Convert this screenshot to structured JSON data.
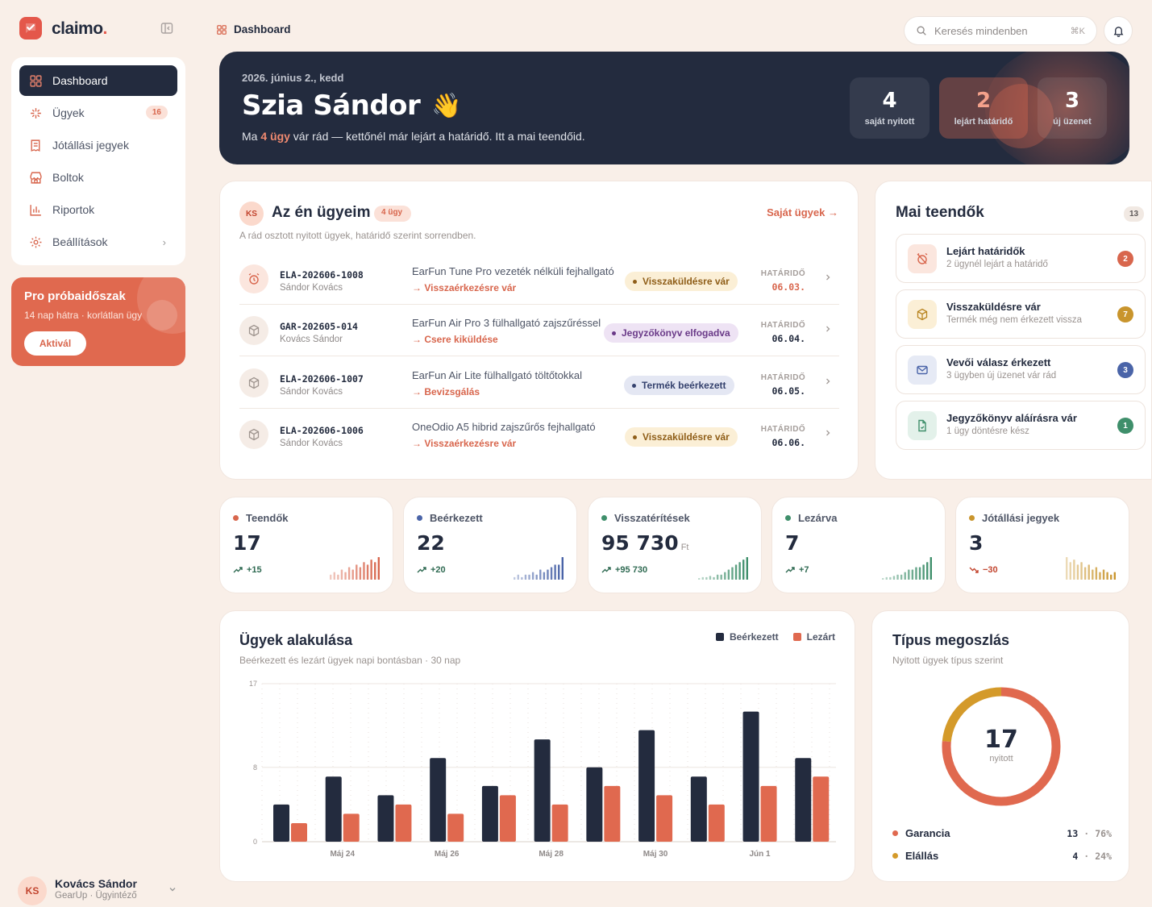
{
  "brand": {
    "name": "claimo",
    "dot": "."
  },
  "sidebar": {
    "items": [
      {
        "label": "Dashboard"
      },
      {
        "label": "Ügyek",
        "badge": "16"
      },
      {
        "label": "Jótállási jegyek"
      },
      {
        "label": "Boltok"
      },
      {
        "label": "Riportok"
      },
      {
        "label": "Beállítások"
      }
    ],
    "pro": {
      "title": "Pro próbaidőszak",
      "subtitle": "14 nap hátra · korlátlan ügy",
      "button": "Aktivál"
    },
    "user": {
      "initials": "KS",
      "name": "Kovács Sándor",
      "role": "GearUp · Ügyintéző"
    }
  },
  "topbar": {
    "breadcrumb": "Dashboard",
    "search_placeholder": "Keresés mindenben",
    "shortcut": "⌘K"
  },
  "hero": {
    "date": "2026. június 2., kedd",
    "greeting": "Szia Sándor",
    "emoji": "👋",
    "subtitle_pre": "Ma ",
    "subtitle_bold": "4 ügy",
    "subtitle_post": " vár rád — kettőnél már lejárt a határidő. Itt a mai teendőid.",
    "stats": [
      {
        "value": "4",
        "label": "saját nyitott"
      },
      {
        "value": "2",
        "label": "lejárt határidő"
      },
      {
        "value": "3",
        "label": "új üzenet"
      }
    ]
  },
  "my_cases": {
    "initials": "KS",
    "title": "Az én ügyeim",
    "count": "4 ügy",
    "subtitle": "A rád osztott nyitott ügyek, határidő szerint sorrendben.",
    "link": "Saját ügyek",
    "deadline_label": "HATÁRIDŐ",
    "rows": [
      {
        "id": "ELA-202606-1008",
        "person": "Sándor Kovács",
        "product": "EarFun Tune Pro vezeték nélküli fejhallgató",
        "step": "Visszaérkezésre vár",
        "status": "Visszaküldésre vár",
        "deadline": "06.03."
      },
      {
        "id": "GAR-202605-014",
        "person": "Kovács Sándor",
        "product": "EarFun Air Pro 3 fülhallgató zajszűréssel",
        "step": "Csere kiküldése",
        "status": "Jegyzőkönyv elfogadva",
        "deadline": "06.04."
      },
      {
        "id": "ELA-202606-1007",
        "person": "Sándor Kovács",
        "product": "EarFun Air Lite fülhallgató töltőtokkal",
        "step": "Bevizsgálás",
        "status": "Termék beérkezett",
        "deadline": "06.05."
      },
      {
        "id": "ELA-202606-1006",
        "person": "Sándor Kovács",
        "product": "OneOdio A5 hibrid zajszűrős fejhallgató",
        "step": "Visszaérkezésre vár",
        "status": "Visszaküldésre vár",
        "deadline": "06.06."
      }
    ]
  },
  "tasks": {
    "title": "Mai teendők",
    "count": "13",
    "items": [
      {
        "title": "Lejárt határidők",
        "subtitle": "2 ügynél lejárt a határidő",
        "count": "2",
        "color": "#d8664d"
      },
      {
        "title": "Visszaküldésre vár",
        "subtitle": "Termék még nem érkezett vissza",
        "count": "7",
        "color": "#c9952d"
      },
      {
        "title": "Vevői válasz érkezett",
        "subtitle": "3 ügyben új üzenet vár rád",
        "count": "3",
        "color": "#4a64a8"
      },
      {
        "title": "Jegyzőkönyv aláírásra vár",
        "subtitle": "1 ügy döntésre kész",
        "count": "1",
        "color": "#3f8f6b"
      }
    ]
  },
  "stats": [
    {
      "label": "Teendők",
      "value": "17",
      "unit": "",
      "delta": "+15",
      "color": "#d8664d",
      "spark": [
        2,
        3,
        2,
        4,
        3,
        5,
        4,
        6,
        5,
        7,
        6,
        8,
        7,
        9
      ]
    },
    {
      "label": "Beérkezett",
      "value": "22",
      "unit": "",
      "delta": "+20",
      "color": "#4a64a8",
      "spark": [
        1,
        2,
        1,
        2,
        2,
        3,
        2,
        4,
        3,
        4,
        5,
        6,
        6,
        9
      ]
    },
    {
      "label": "Visszatérítések",
      "value": "95 730",
      "unit": "Ft",
      "delta": "+95 730",
      "color": "#3f8f6b",
      "spark": [
        0.5,
        1,
        1,
        1.5,
        1,
        2,
        2,
        3,
        4,
        5,
        6,
        7,
        8,
        9
      ]
    },
    {
      "label": "Lezárva",
      "value": "7",
      "unit": "",
      "delta": "+7",
      "color": "#3f8f6b",
      "spark": [
        0.5,
        1,
        1,
        1.5,
        2,
        2,
        3,
        4,
        4,
        5,
        5,
        6,
        7,
        9
      ]
    },
    {
      "label": "Jótállási jegyek",
      "value": "3",
      "unit": "",
      "delta": "−30",
      "color": "#c9952d",
      "spark": [
        9,
        7,
        8,
        6,
        7,
        5,
        6,
        4,
        5,
        3,
        4,
        3,
        2,
        3
      ]
    }
  ],
  "chart_data": [
    {
      "type": "bar",
      "title": "Ügyek alakulása",
      "subtitle": "Beérkezett és lezárt ügyek napi bontásban · 30 nap",
      "ylim": [
        0,
        17
      ],
      "yticks": [
        "0",
        "8",
        "17"
      ],
      "x_labels": [
        "Máj 24",
        "Máj 26",
        "Máj 28",
        "Máj 30",
        "Jún 1"
      ],
      "categories": [
        "Máj 23",
        "Máj 24",
        "Máj 25",
        "Máj 26",
        "Máj 27",
        "Máj 28",
        "Máj 29",
        "Máj 30",
        "Máj 31",
        "Jún 1",
        "Jún 2"
      ],
      "series": [
        {
          "name": "Beérkezett",
          "color": "#232b3e",
          "values": [
            4,
            7,
            5,
            9,
            6,
            11,
            8,
            12,
            7,
            14,
            9
          ]
        },
        {
          "name": "Lezárt",
          "color": "#e0694f",
          "values": [
            2,
            3,
            4,
            3,
            5,
            4,
            6,
            5,
            4,
            6,
            7
          ]
        }
      ],
      "legend": "top-right"
    },
    {
      "type": "pie",
      "title": "Típus megoszlás",
      "subtitle": "Nyitott ügyek típus szerint",
      "total": "17",
      "total_label": "nyitott",
      "slices": [
        {
          "name": "Garancia",
          "value": 13,
          "percent": "76%",
          "color": "#e0694f"
        },
        {
          "name": "Elállás",
          "value": 4,
          "percent": "24%",
          "color": "#d49a2a"
        }
      ]
    }
  ]
}
